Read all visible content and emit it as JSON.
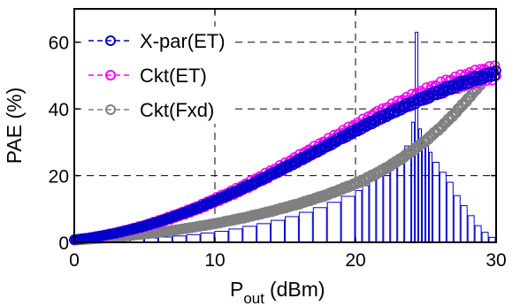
{
  "chart_data": {
    "type": "scatter",
    "title": "",
    "xlabel": "P",
    "xlabel_subscript": "out",
    "xlabel_unit": "(dBm)",
    "ylabel": "PAE (%)",
    "xlim": [
      0,
      30
    ],
    "ylim": [
      0,
      70
    ],
    "xticks": [
      "0",
      "10",
      "20",
      "30"
    ],
    "yticks": [
      "0",
      "20",
      "40",
      "60"
    ],
    "grid": true,
    "legend_position": "top-left",
    "series": [
      {
        "name": "X-par(ET)",
        "color": "#0000cc",
        "marker": "open-circle",
        "x": [
          0,
          1,
          2,
          3,
          4,
          5,
          6,
          7,
          8,
          9,
          10,
          11,
          12,
          13,
          14,
          15,
          16,
          17,
          18,
          19,
          20,
          21,
          22,
          23,
          24,
          25,
          26,
          27,
          28,
          29,
          30
        ],
        "y": [
          0.8,
          1.3,
          2.0,
          2.8,
          3.8,
          4.9,
          6.2,
          7.6,
          9.1,
          10.7,
          12.5,
          14.3,
          16.2,
          18.2,
          20.3,
          22.4,
          24.6,
          26.8,
          29.0,
          31.3,
          33.5,
          35.7,
          37.8,
          39.8,
          41.7,
          43.5,
          45.2,
          46.8,
          48.3,
          49.6,
          50.8
        ]
      },
      {
        "name": "Ckt(ET)",
        "color": "#ff00ff",
        "marker": "open-circle",
        "x": [
          0,
          1,
          2,
          3,
          4,
          5,
          6,
          7,
          8,
          9,
          10,
          11,
          12,
          13,
          14,
          15,
          16,
          17,
          18,
          19,
          20,
          21,
          22,
          23,
          24,
          25,
          26,
          27,
          28,
          29,
          30
        ],
        "y": [
          0.8,
          1.3,
          2.0,
          2.8,
          3.8,
          4.9,
          6.2,
          7.6,
          9.1,
          10.7,
          12.6,
          14.4,
          16.4,
          18.5,
          20.7,
          22.9,
          25.2,
          27.5,
          29.8,
          32.1,
          34.3,
          36.6,
          38.8,
          40.8,
          42.7,
          44.5,
          46.2,
          47.7,
          49.0,
          50.2,
          51.0
        ]
      },
      {
        "name": "Ckt(Fxd)",
        "color": "#808080",
        "marker": "open-circle",
        "x": [
          0,
          2,
          4,
          6,
          8,
          10,
          12,
          14,
          16,
          18,
          20,
          21,
          22,
          23,
          24,
          25,
          26,
          27,
          28,
          29
        ],
        "y": [
          0.6,
          1.2,
          2.0,
          3.0,
          4.2,
          5.6,
          7.3,
          9.3,
          11.6,
          14.3,
          17.6,
          19.6,
          21.8,
          24.4,
          27.3,
          30.5,
          34.2,
          38.4,
          43.0,
          48.0
        ]
      }
    ],
    "histogram": {
      "color": "#0000cc",
      "bins_x": [
        0,
        1,
        2,
        3,
        4,
        5,
        6,
        7,
        8,
        9,
        10,
        11,
        12,
        13,
        14,
        15,
        16,
        17,
        18,
        19,
        20,
        20.5,
        21,
        21.5,
        22,
        22.5,
        23,
        23.5,
        24,
        24.25,
        24.5,
        24.75,
        25,
        25.25,
        25.5,
        26,
        26.5,
        27,
        27.5,
        28,
        28.5,
        29,
        29.5
      ],
      "heights": [
        0.5,
        0.6,
        0.8,
        0.9,
        1.1,
        1.3,
        1.6,
        1.9,
        2.3,
        2.8,
        3.3,
        4.0,
        4.8,
        5.6,
        6.6,
        7.7,
        9.0,
        10.4,
        12.0,
        13.8,
        15.5,
        17.0,
        18.6,
        20.3,
        22.1,
        24.0,
        26.2,
        28.9,
        36.0,
        63.0,
        34.0,
        30.0,
        29.0,
        27.0,
        24.0,
        21.0,
        18.0,
        14.0,
        11.0,
        8.0,
        5.0,
        3.0,
        1.5
      ]
    }
  }
}
